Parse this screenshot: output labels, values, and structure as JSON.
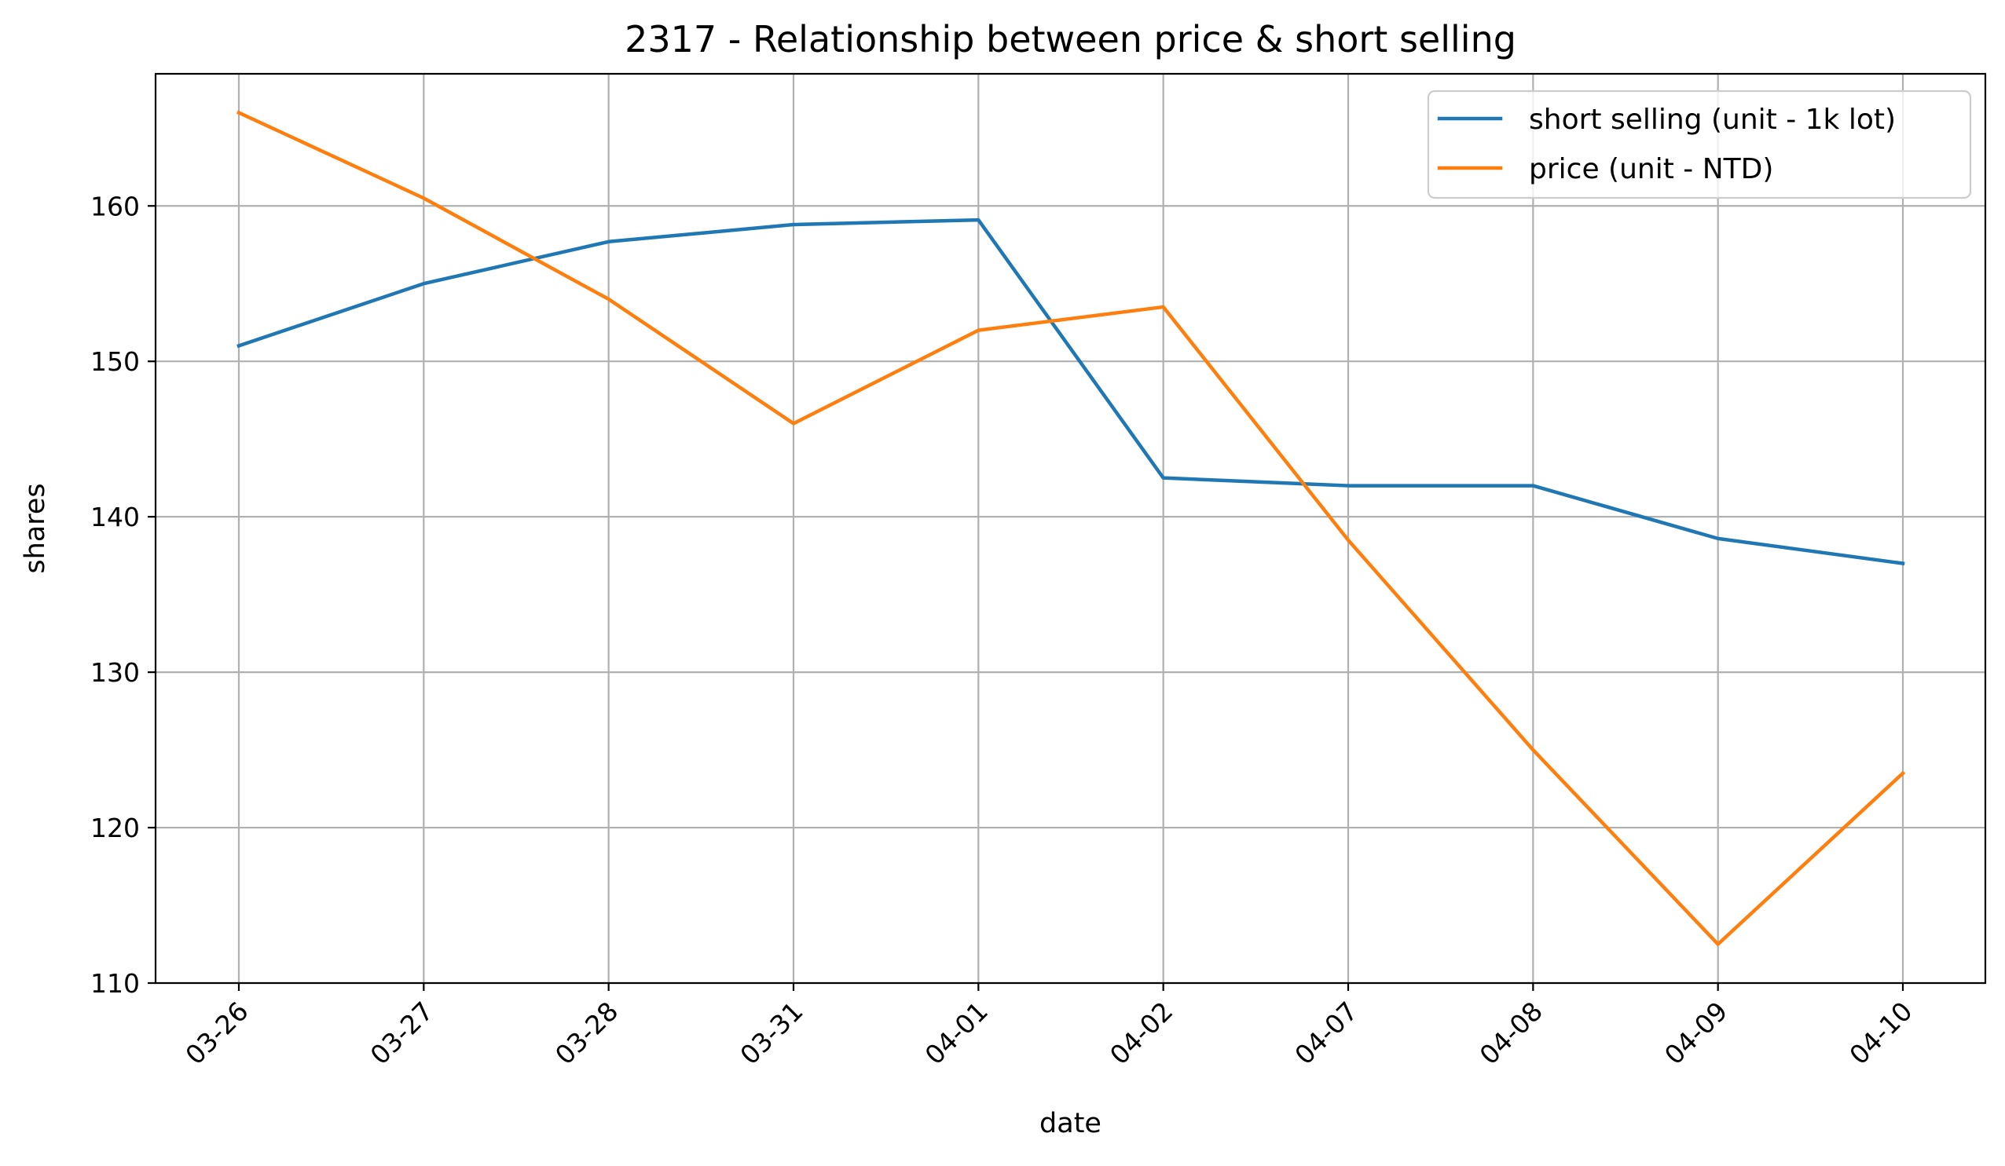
{
  "chart_data": {
    "type": "line",
    "title": "2317 - Relationship between price & short selling",
    "xlabel": "date",
    "ylabel": "shares",
    "categories": [
      "03-26",
      "03-27",
      "03-28",
      "03-31",
      "04-01",
      "04-02",
      "04-07",
      "04-08",
      "04-09",
      "04-10"
    ],
    "ylim": [
      110,
      168.5
    ],
    "yticks": [
      110,
      120,
      130,
      140,
      150,
      160
    ],
    "grid": true,
    "legend_position": "top-right",
    "series": [
      {
        "name": "short selling (unit - 1k lot)",
        "color": "#1f77b4",
        "values": [
          151.0,
          155.0,
          157.7,
          158.8,
          159.1,
          142.5,
          142.0,
          142.0,
          138.6,
          137.0
        ]
      },
      {
        "name": "price (unit - NTD)",
        "color": "#ff7f0e",
        "values": [
          166.0,
          160.5,
          154.0,
          146.0,
          152.0,
          153.5,
          138.5,
          125.0,
          112.5,
          123.5
        ]
      }
    ]
  }
}
